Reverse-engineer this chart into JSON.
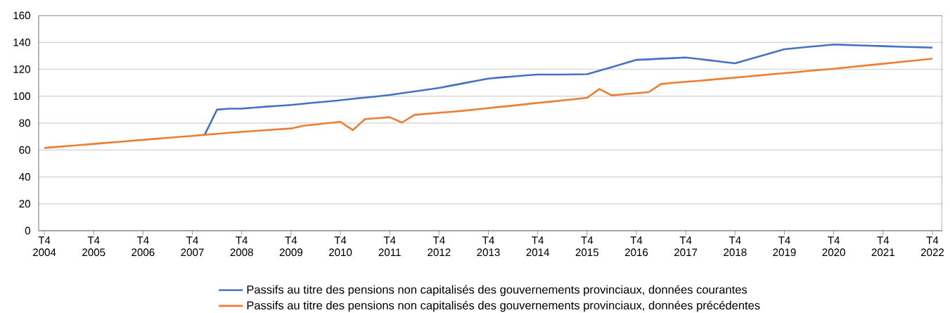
{
  "chart_data": {
    "type": "line",
    "categories": [
      "T4 2004",
      null,
      null,
      null,
      "T4 2005",
      null,
      null,
      null,
      "T4 2006",
      null,
      null,
      null,
      "T4 2007",
      null,
      null,
      null,
      "T4 2008",
      null,
      null,
      null,
      "T4 2009",
      null,
      null,
      null,
      "T4 2010",
      null,
      null,
      null,
      "T4 2011",
      null,
      null,
      null,
      "T4 2012",
      null,
      null,
      null,
      "T4 2013",
      null,
      null,
      null,
      "T4 2014",
      null,
      null,
      null,
      "T4 2015",
      null,
      null,
      null,
      "T4 2016",
      null,
      null,
      null,
      "T4 2017",
      null,
      null,
      null,
      "T4 2018",
      null,
      null,
      null,
      "T4 2019",
      null,
      null,
      null,
      "T4 2020",
      null,
      null,
      null,
      "T4 2021",
      null,
      null,
      null,
      "T4 2022"
    ],
    "series": [
      {
        "name": "Passifs au titre des pensions non capitalisés des gouvernements provinciaux, données courantes",
        "color": "#4472c4",
        "values": [
          null,
          null,
          null,
          null,
          null,
          null,
          null,
          null,
          null,
          null,
          null,
          null,
          null,
          71.3,
          90.0,
          90.7,
          90.8,
          91.5,
          92.2,
          92.8,
          93.5,
          94.4,
          95.3,
          96.1,
          97.0,
          98.0,
          99.0,
          99.9,
          100.9,
          102.2,
          103.5,
          104.8,
          106.1,
          107.9,
          109.6,
          111.4,
          113.1,
          113.9,
          114.6,
          115.4,
          116.1,
          116.1,
          116.1,
          116.2,
          116.3,
          119.0,
          121.6,
          124.3,
          127.0,
          127.4,
          127.9,
          128.3,
          128.8,
          127.7,
          126.6,
          125.5,
          124.4,
          127.0,
          129.7,
          132.3,
          134.9,
          135.8,
          136.7,
          137.5,
          138.4,
          138.1,
          137.8,
          137.5,
          137.2,
          136.9,
          136.6,
          136.4,
          136.1
        ]
      },
      {
        "name": "Passifs au titre des pensions non capitalisés des gouvernements provinciaux, données précédentes",
        "color": "#ed7d31",
        "values": [
          61.5,
          62.3,
          63.0,
          63.8,
          64.5,
          65.3,
          66.0,
          66.8,
          67.5,
          68.3,
          69.0,
          69.8,
          70.5,
          71.3,
          72.0,
          72.8,
          73.5,
          74.1,
          74.8,
          75.4,
          76.0,
          78.0,
          79.0,
          80.0,
          80.9,
          74.8,
          83.0,
          83.7,
          84.4,
          80.4,
          86.1,
          86.9,
          87.7,
          88.4,
          89.2,
          90.2,
          91.1,
          92.1,
          93.0,
          94.0,
          95.0,
          95.9,
          96.9,
          97.8,
          98.8,
          105.3,
          100.6,
          101.4,
          102.2,
          103.0,
          109.1,
          109.9,
          110.7,
          111.4,
          112.2,
          113.0,
          113.8,
          114.6,
          115.5,
          116.3,
          117.1,
          117.9,
          118.8,
          119.6,
          120.4,
          121.3,
          122.3,
          123.2,
          124.1,
          125.0,
          126.0,
          126.9,
          127.8
        ]
      }
    ],
    "ylim": [
      0,
      160
    ],
    "yticks": [
      0,
      20,
      40,
      60,
      80,
      100,
      120,
      140,
      160
    ],
    "grid": "y",
    "legend": "bottom",
    "marker": "none",
    "line_style": "solid"
  }
}
